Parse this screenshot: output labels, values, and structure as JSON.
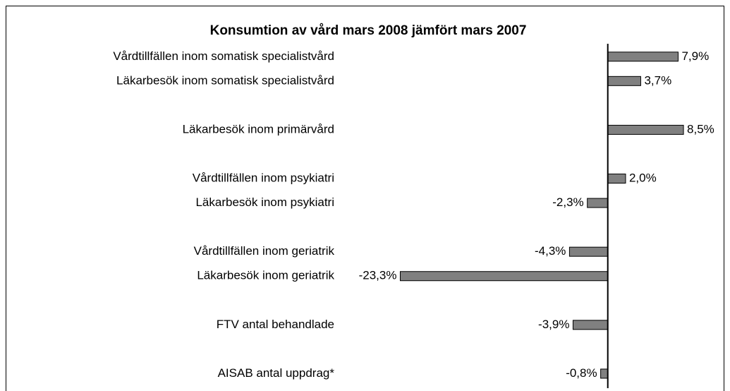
{
  "chart_data": {
    "type": "bar",
    "orientation": "horizontal",
    "title": "Konsumtion av vård mars 2008 jämfört mars 2007",
    "categories": [
      "Vårdtillfällen inom somatisk specialistvård",
      "Läkarbesök  inom somatisk specialistvård",
      null,
      "Läkarbesök inom primärvård",
      null,
      "Vårdtillfällen inom psykiatri",
      "Läkarbesök inom psykiatri",
      null,
      "Vårdtillfällen inom geriatrik",
      "Läkarbesök inom geriatrik",
      null,
      "FTV antal behandlade",
      null,
      "AISAB antal uppdrag*"
    ],
    "values": [
      7.9,
      3.7,
      null,
      8.5,
      null,
      2.0,
      -2.3,
      null,
      -4.3,
      -23.3,
      null,
      -3.9,
      null,
      -0.8
    ],
    "value_labels": [
      "7,9%",
      "3,7%",
      null,
      "8,5%",
      null,
      "2,0%",
      "-2,3%",
      null,
      "-4,3%",
      "-23,3%",
      null,
      "-3,9%",
      null,
      "-0,8%"
    ],
    "color": "#808080",
    "xlim": [
      -25,
      10
    ]
  }
}
